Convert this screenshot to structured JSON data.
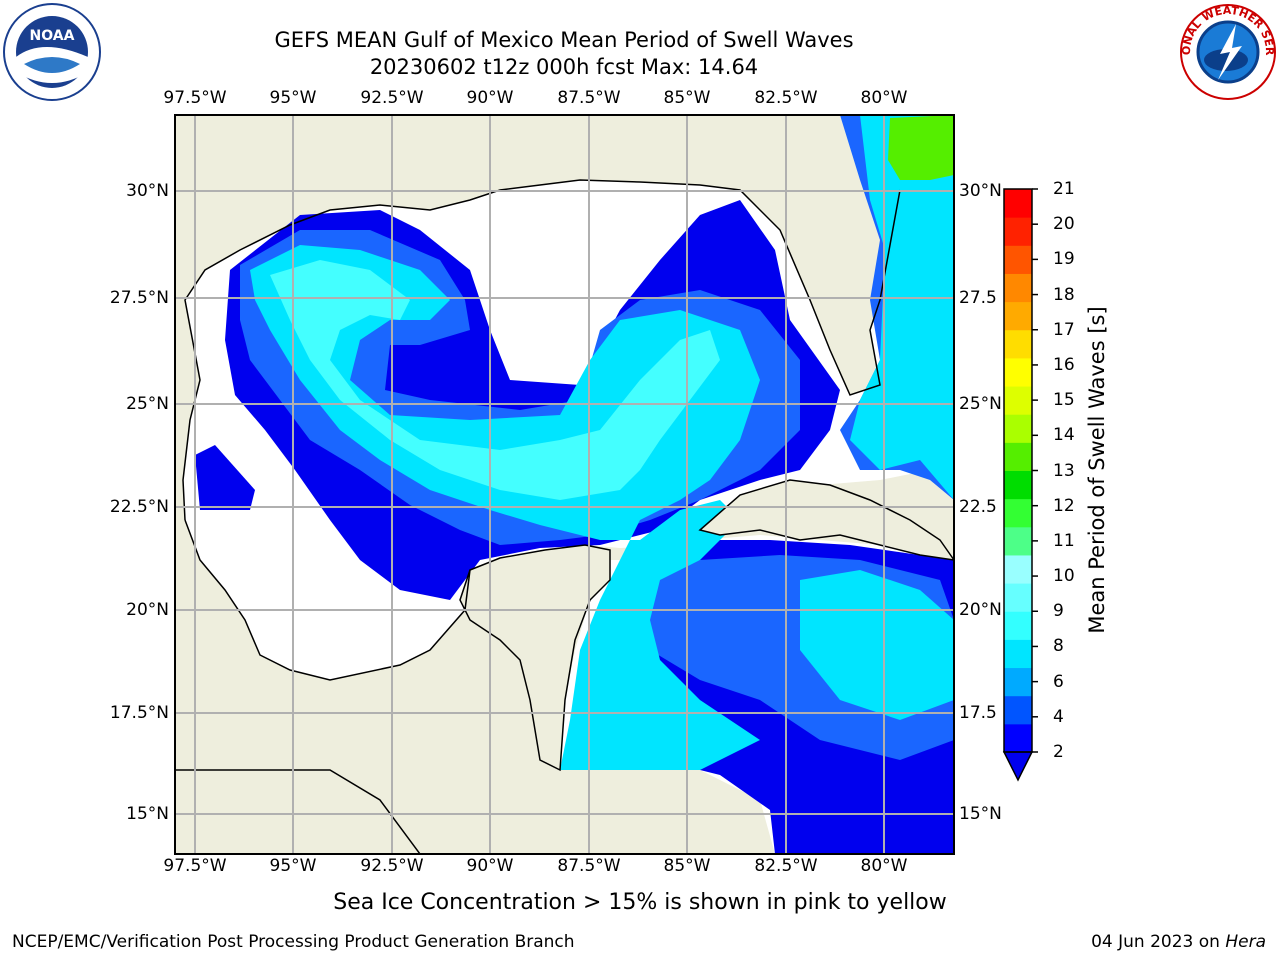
{
  "title": {
    "line1": "GEFS MEAN Gulf of Mexico Mean Period of Swell Waves",
    "line2": "20230602 t12z 000h fcst   Max: 14.64"
  },
  "axes": {
    "lon_ticks": [
      "97.5°W",
      "95°W",
      "92.5°W",
      "90°W",
      "87.5°W",
      "85°W",
      "82.5°W",
      "80°W"
    ],
    "lat_ticks": [
      "30°N",
      "27.5°N",
      "25°N",
      "22.5°N",
      "20°N",
      "17.5°N",
      "15°N"
    ],
    "lat_ticks_right": [
      "30°N",
      "27.5",
      "25°N",
      "22.5",
      "20°N",
      "17.5",
      "15°N"
    ]
  },
  "colorbar": {
    "label": "Mean Period of Swell Waves [s]",
    "ticks": [
      "21",
      "20",
      "19",
      "18",
      "17",
      "16",
      "15",
      "14",
      "13",
      "12",
      "11",
      "10",
      "9",
      "8",
      "6",
      "4",
      "2"
    ],
    "colors": [
      "#0000ff",
      "#0055ff",
      "#00aaff",
      "#00e5ff",
      "#33ffff",
      "#66ffff",
      "#99ffff",
      "#4dff88",
      "#33ff33",
      "#00dd00",
      "#55ee00",
      "#aaff00",
      "#ddff00",
      "#ffff00",
      "#ffdd00",
      "#ffaa00",
      "#ff8800",
      "#ff5500",
      "#ff2200",
      "#ff0000"
    ]
  },
  "map_colors": {
    "land": "#eeeedd",
    "deep_blue": "#0000ee",
    "blue": "#1a66ff",
    "cyan": "#00e5ff",
    "light_cyan": "#44ffff",
    "green": "#55ee00",
    "yellow_green": "#ccff00"
  },
  "note": "Sea Ice Concentration > 15% is shown in pink to yellow",
  "footer": {
    "left": "NCEP/EMC/Verification Post Processing Product Generation Branch",
    "right_date": "04 Jun 2023 on",
    "right_host": "Hera"
  },
  "logos": {
    "left": "noaa-logo",
    "right": "nws-logo",
    "right_text": "NATIONAL WEATHER SERVICE"
  }
}
